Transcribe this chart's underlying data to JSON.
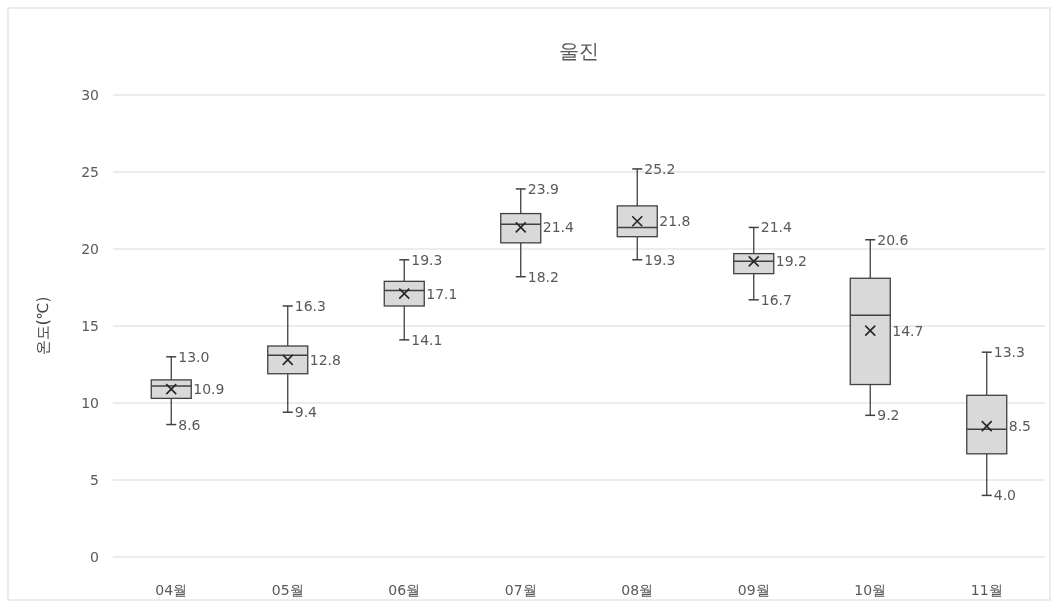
{
  "chart_data": {
    "type": "box",
    "title": "울진",
    "ylabel": "온도(℃)",
    "categories": [
      "04월",
      "05월",
      "06월",
      "07월",
      "08월",
      "09월",
      "10월",
      "11월"
    ],
    "boxes": [
      {
        "low": 8.6,
        "q1": 10.3,
        "median": 11.1,
        "q3": 11.5,
        "high": 13.0,
        "mean": 10.9
      },
      {
        "low": 9.4,
        "q1": 11.9,
        "median": 13.1,
        "q3": 13.7,
        "high": 16.3,
        "mean": 12.8
      },
      {
        "low": 14.1,
        "q1": 16.3,
        "median": 17.3,
        "q3": 17.9,
        "high": 19.3,
        "mean": 17.1
      },
      {
        "low": 18.2,
        "q1": 20.4,
        "median": 21.6,
        "q3": 22.3,
        "high": 23.9,
        "mean": 21.4
      },
      {
        "low": 19.3,
        "q1": 20.8,
        "median": 21.4,
        "q3": 22.8,
        "high": 25.2,
        "mean": 21.8
      },
      {
        "low": 16.7,
        "q1": 18.4,
        "median": 19.2,
        "q3": 19.7,
        "high": 21.4,
        "mean": 19.2
      },
      {
        "low": 9.2,
        "q1": 11.2,
        "median": 15.7,
        "q3": 18.1,
        "high": 20.6,
        "mean": 14.7
      },
      {
        "low": 4.0,
        "q1": 6.7,
        "median": 8.3,
        "q3": 10.5,
        "high": 13.3,
        "mean": 8.5
      }
    ],
    "value_labels": [
      [
        "13.0",
        "10.9",
        "8.6"
      ],
      [
        "16.3",
        "12.8",
        "9.4"
      ],
      [
        "19.3",
        "17.1",
        "14.1"
      ],
      [
        "23.9",
        "21.4",
        "18.2"
      ],
      [
        "25.2",
        "21.8",
        "19.3"
      ],
      [
        "21.4",
        "19.2",
        "16.7"
      ],
      [
        "20.6",
        "14.7",
        "9.2"
      ],
      [
        "13.3",
        "8.5",
        "4.0"
      ]
    ],
    "color": "#d9d9d9",
    "ylim": [
      0,
      30
    ],
    "yticks": [
      0,
      5,
      10,
      15,
      20,
      25,
      30
    ],
    "grid": "y"
  }
}
